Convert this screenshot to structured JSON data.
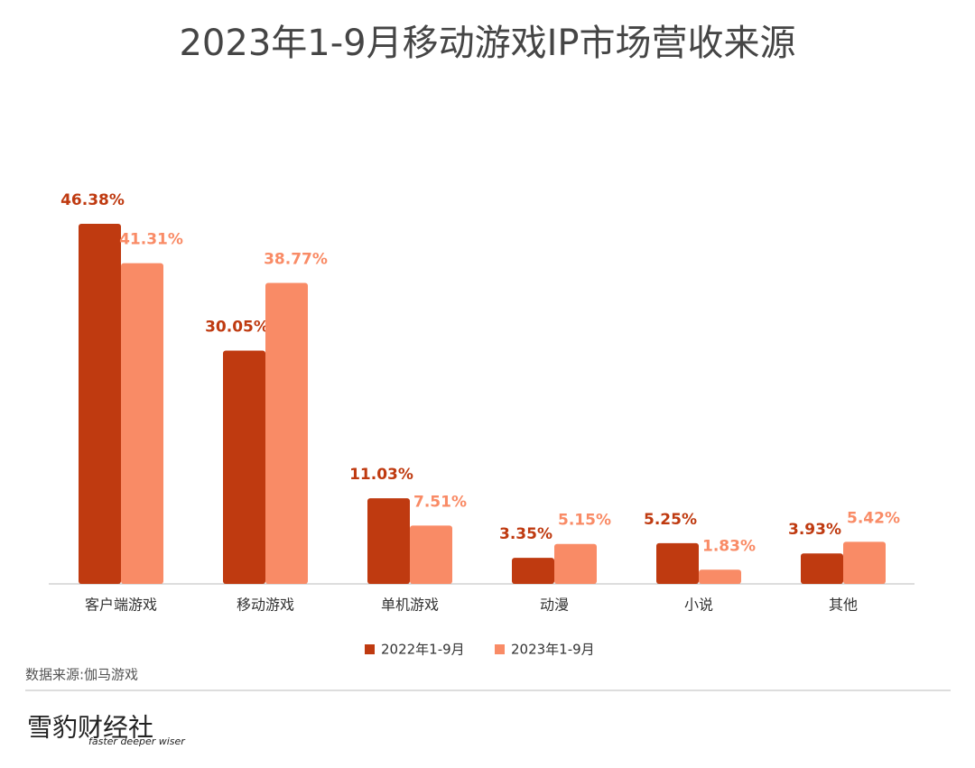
{
  "chart_data": {
    "type": "bar",
    "title": "2023年1-9月移动游戏IP市场营收来源",
    "categories": [
      "客户端游戏",
      "移动游戏",
      "单机游戏",
      "动漫",
      "小说",
      "其他"
    ],
    "series": [
      {
        "name": "2022年1-9月",
        "color": "#bf3a10",
        "values": [
          46.38,
          30.05,
          11.03,
          3.35,
          5.25,
          3.93
        ],
        "value_labels": [
          "46.38%",
          "30.05%",
          "11.03%",
          "3.35%",
          "5.25%",
          "3.93%"
        ]
      },
      {
        "name": "2023年1-9月",
        "color": "#f98b66",
        "values": [
          41.31,
          38.77,
          7.51,
          5.15,
          1.83,
          5.42
        ],
        "value_labels": [
          "41.31%",
          "38.77%",
          "7.51%",
          "5.15%",
          "1.83%",
          "5.42%"
        ]
      }
    ],
    "legend": "bottom",
    "source": "数据来源:伽马游戏",
    "brand": {
      "name": "雪豹财经社",
      "slogan": "faster deeper wiser"
    }
  }
}
